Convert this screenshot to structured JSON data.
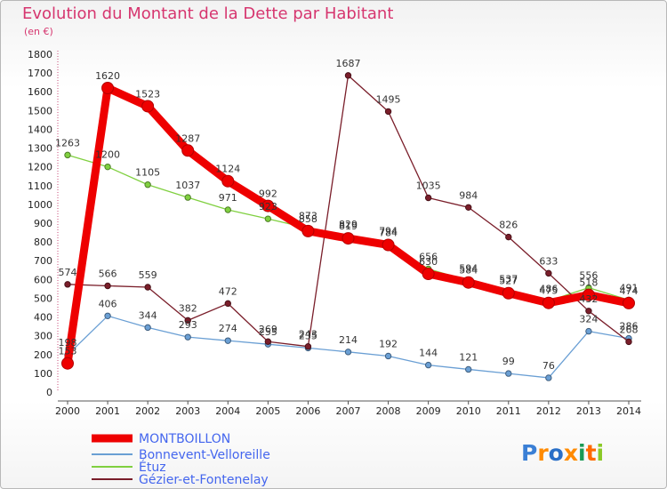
{
  "chart_data": {
    "type": "line",
    "title": "Evolution du Montant de la Dette par Habitant",
    "subtitle": "(en €)",
    "x": [
      2000,
      2001,
      2002,
      2003,
      2004,
      2005,
      2006,
      2007,
      2008,
      2009,
      2010,
      2011,
      2012,
      2013,
      2014
    ],
    "ylim": [
      0,
      1800
    ],
    "ytick_step": 100,
    "grid": false,
    "legend_position": "bottom-left",
    "series": [
      {
        "name": "MONTBOILLON",
        "color": "#ee0000",
        "emphasis": true,
        "values": [
          153,
          1620,
          1523,
          1287,
          1124,
          992,
          858,
          819,
          784,
          630,
          584,
          527,
          475,
          518,
          474
        ]
      },
      {
        "name": "Bonnevent-Velloreille",
        "color": "#6a9fd4",
        "emphasis": false,
        "values": [
          198,
          406,
          344,
          293,
          274,
          255,
          235,
          214,
          192,
          144,
          121,
          99,
          76,
          324,
          286
        ]
      },
      {
        "name": "Étuz",
        "color": "#80d040",
        "emphasis": false,
        "values": [
          1263,
          1200,
          1105,
          1037,
          971,
          923,
          873,
          829,
          794,
          656,
          594,
          537,
          486,
          556,
          491
        ]
      },
      {
        "name": "Gézier-et-Fontenelay",
        "color": "#7a1e2a",
        "emphasis": false,
        "values": [
          574,
          566,
          559,
          382,
          472,
          269,
          243,
          1687,
          1495,
          1035,
          984,
          826,
          633,
          432,
          268
        ]
      }
    ]
  },
  "branding": {
    "logo_text": "Proxiti"
  }
}
